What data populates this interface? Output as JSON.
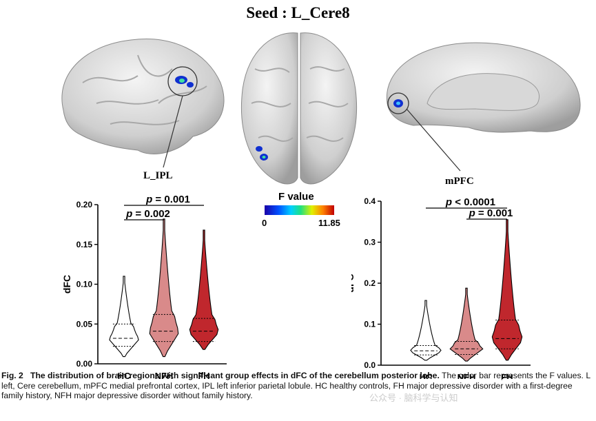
{
  "figure": {
    "seed_title": "Seed : L_Cere8",
    "region_left": "L_IPL",
    "region_right": "mPFC",
    "colorbar": {
      "title": "F value",
      "min_label": "0",
      "max_label": "11.85"
    },
    "caption_label": "Fig. 2",
    "caption_title": "The distribution of brain regions with significant group effects in dFC of the cerebellum posterior lobe.",
    "caption_body": " The color bar represents the F values. L left, Cere cerebellum, mPFC medial prefrontal cortex, IPL left inferior parietal lobule. HC healthy controls, FH major depressive disorder with a first-degree family history, NFH major depressive disorder without family history.",
    "watermark": "公众号 · 脑科学与认知"
  },
  "chart_data": [
    {
      "type": "violin",
      "ylabel": "dFC",
      "ylim": [
        0,
        0.2
      ],
      "yticks": [
        "0.00",
        "0.05",
        "0.10",
        "0.15",
        "0.20"
      ],
      "categories": [
        "HC",
        "NFH",
        "FH"
      ],
      "colors": [
        "#ffffff",
        "#d98a8a",
        "#c0272d"
      ],
      "groups": [
        {
          "name": "HC",
          "min": 0.009,
          "max": 0.11,
          "q1": 0.022,
          "median": 0.032,
          "q3": 0.05
        },
        {
          "name": "NFH",
          "min": 0.009,
          "max": 0.182,
          "q1": 0.028,
          "median": 0.041,
          "q3": 0.062
        },
        {
          "name": "FH",
          "min": 0.018,
          "max": 0.168,
          "q1": 0.028,
          "median": 0.041,
          "q3": 0.057
        }
      ],
      "annotations": [
        {
          "text": "p = 0.001",
          "from": "HC",
          "to": "FH"
        },
        {
          "text": "p = 0.002",
          "from": "HC",
          "to": "NFH"
        }
      ]
    },
    {
      "type": "violin",
      "ylabel": "dFC",
      "ylim": [
        0,
        0.4
      ],
      "yticks": [
        "0.0",
        "0.1",
        "0.2",
        "0.3",
        "0.4"
      ],
      "categories": [
        "HC",
        "NFH",
        "FH"
      ],
      "colors": [
        "#ffffff",
        "#d98a8a",
        "#c0272d"
      ],
      "groups": [
        {
          "name": "HC",
          "min": 0.012,
          "max": 0.158,
          "q1": 0.025,
          "median": 0.035,
          "q3": 0.048
        },
        {
          "name": "NFH",
          "min": 0.01,
          "max": 0.188,
          "q1": 0.026,
          "median": 0.04,
          "q3": 0.058
        },
        {
          "name": "FH",
          "min": 0.012,
          "max": 0.355,
          "q1": 0.04,
          "median": 0.065,
          "q3": 0.11
        }
      ],
      "annotations": [
        {
          "text": "p < 0.0001",
          "from": "HC",
          "to": "FH"
        },
        {
          "text": "p = 0.001",
          "from": "NFH",
          "to": "FH"
        }
      ]
    }
  ]
}
